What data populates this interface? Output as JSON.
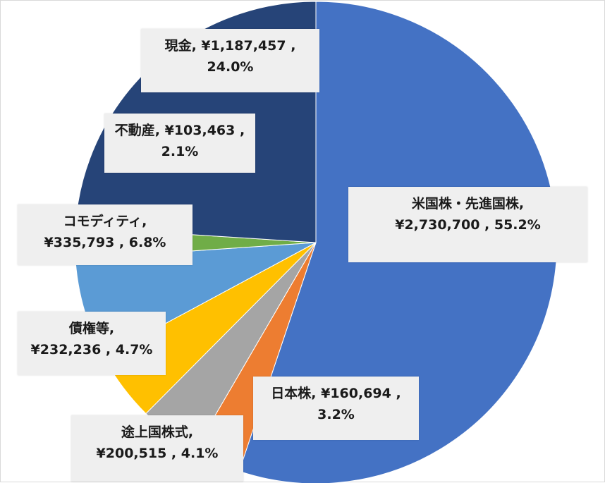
{
  "chart_data": {
    "type": "pie",
    "start_angle_deg": 0,
    "direction": "clockwise",
    "slices": [
      {
        "name": "米国株・先進国株",
        "value": 2730700,
        "percent": 55.2,
        "color": "#4472c4",
        "label_line1": "米国株・先進国株,",
        "label_line2": "¥2,730,700 , 55.2%"
      },
      {
        "name": "日本株",
        "value": 160694,
        "percent": 3.2,
        "color": "#ed7d31",
        "label_line1": "日本株, ¥160,694 ,",
        "label_line2": "3.2%"
      },
      {
        "name": "途上国株式",
        "value": 200515,
        "percent": 4.1,
        "color": "#a5a5a5",
        "label_line1": "途上国株式,",
        "label_line2": "¥200,515 , 4.1%"
      },
      {
        "name": "債権等",
        "value": 232236,
        "percent": 4.7,
        "color": "#ffc000",
        "label_line1": "債権等,",
        "label_line2": "¥232,236 , 4.7%"
      },
      {
        "name": "コモディティ",
        "value": 335793,
        "percent": 6.8,
        "color": "#5b9bd5",
        "label_line1": "コモディティ,",
        "label_line2": "¥335,793 , 6.8%"
      },
      {
        "name": "不動産",
        "value": 103463,
        "percent": 2.1,
        "color": "#70ad47",
        "label_line1": "不動産, ¥103,463 ,",
        "label_line2": "2.1%"
      },
      {
        "name": "現金",
        "value": 1187457,
        "percent": 24.0,
        "color": "#264478",
        "label_line1": "現金, ¥1,187,457 ,",
        "label_line2": "24.0%"
      }
    ]
  }
}
